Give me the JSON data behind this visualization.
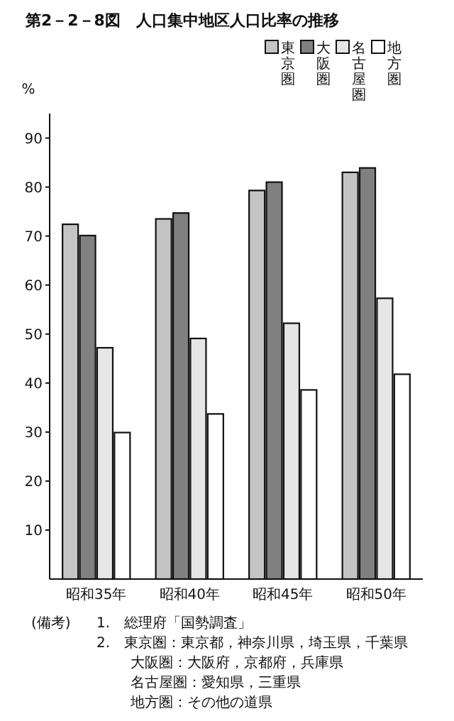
{
  "chart_data": {
    "type": "bar",
    "title": "第2－2－8図　人口集中地区人口比率の推移",
    "ylabel": "%",
    "categories": [
      "昭和35年",
      "昭和40年",
      "昭和45年",
      "昭和50年"
    ],
    "series": [
      {
        "name": "東京圏",
        "color": "#c4c4c4",
        "values": [
          72.4,
          73.5,
          79.3,
          83.0
        ]
      },
      {
        "name": "大阪圏",
        "color": "#808080",
        "values": [
          70.1,
          74.7,
          81.0,
          83.9
        ]
      },
      {
        "name": "名古屋圏",
        "color": "#e6e6e6",
        "values": [
          47.2,
          49.1,
          52.2,
          57.3
        ]
      },
      {
        "name": "地方圏",
        "color": "#ffffff",
        "values": [
          29.9,
          33.7,
          38.6,
          41.8
        ]
      }
    ],
    "ylim": [
      0,
      95
    ],
    "yticks": [
      10,
      20,
      30,
      40,
      50,
      60,
      70,
      80,
      90
    ],
    "legend": "top right",
    "annotations": [
      "(備考)",
      "1.　総理府「国勢調査」",
      "2.　東京圏：東京都，神奈川県，埼玉県，千葉県",
      "大阪圏：大阪府，京都府，兵庫県",
      "名古屋圏：愛知県，三重県",
      "地方圏：その他の道県"
    ]
  }
}
